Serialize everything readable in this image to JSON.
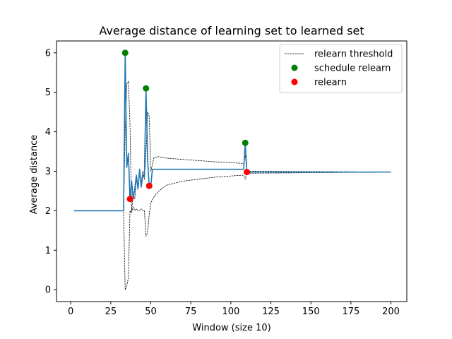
{
  "chart_data": {
    "type": "line",
    "title": "Average distance of learning set to learned set",
    "xlabel": "Window (size 10)",
    "ylabel": "Average distance",
    "xlim": [
      -8.9,
      209.9
    ],
    "ylim": [
      -0.3,
      6.3
    ],
    "xticks": [
      0,
      25,
      50,
      75,
      100,
      125,
      150,
      175,
      200
    ],
    "yticks": [
      0,
      1,
      2,
      3,
      4,
      5,
      6
    ],
    "grid": false,
    "legend_position": "top-right",
    "colors": {
      "distance": "#1f77b4",
      "threshold": "#000000",
      "schedule": "#008000",
      "relearn": "#ff0000"
    },
    "series": [
      {
        "key": "distance",
        "style": "solid",
        "x": [
          2,
          33,
          34,
          35,
          36,
          37,
          38,
          39,
          40,
          41,
          42,
          43,
          44,
          45,
          46,
          47,
          48,
          49,
          50,
          51,
          108,
          109,
          110,
          200
        ],
        "y": [
          2.0,
          2.0,
          6.0,
          3.1,
          3.45,
          2.3,
          2.75,
          2.3,
          2.55,
          2.9,
          2.55,
          3.05,
          2.6,
          2.9,
          2.85,
          5.1,
          3.3,
          2.63,
          2.63,
          3.05,
          3.05,
          3.72,
          2.98,
          2.98
        ]
      },
      {
        "name": "relearn threshold",
        "key": "threshold-upper",
        "style": "dashed",
        "x": [
          2,
          33,
          34,
          35,
          36,
          37,
          38,
          39,
          40,
          41,
          42,
          43,
          44,
          45,
          46,
          47,
          48,
          49,
          50,
          52,
          55,
          60,
          70,
          80,
          90,
          100,
          107,
          108,
          109,
          110,
          200
        ],
        "y": [
          2.0,
          2.0,
          4.0,
          5.2,
          5.28,
          4.2,
          2.0,
          2.4,
          2.3,
          2.8,
          2.6,
          2.9,
          2.7,
          3.0,
          2.8,
          3.5,
          4.5,
          4.4,
          3.0,
          3.35,
          3.37,
          3.33,
          3.3,
          3.27,
          3.24,
          3.22,
          3.2,
          3.18,
          3.4,
          3.0,
          2.98
        ]
      },
      {
        "key": "threshold-lower",
        "style": "dashed",
        "x": [
          2,
          33,
          34,
          35,
          36,
          37,
          38,
          39,
          40,
          41,
          42,
          43,
          44,
          45,
          46,
          47,
          48,
          49,
          50,
          52,
          55,
          60,
          70,
          80,
          90,
          100,
          107,
          108,
          109,
          110,
          200
        ],
        "y": [
          2.0,
          2.0,
          0.0,
          0.1,
          0.3,
          2.0,
          1.95,
          2.1,
          2.0,
          2.05,
          2.0,
          2.0,
          2.05,
          2.0,
          2.0,
          1.35,
          1.45,
          1.9,
          2.2,
          2.35,
          2.5,
          2.65,
          2.75,
          2.8,
          2.85,
          2.88,
          2.9,
          2.9,
          2.8,
          2.95,
          2.98
        ]
      },
      {
        "name": "schedule relearn",
        "key": "schedule",
        "style": "markers",
        "x": [
          34,
          47,
          109
        ],
        "y": [
          6.0,
          5.1,
          3.72
        ]
      },
      {
        "name": "relearn",
        "key": "relearn",
        "style": "markers",
        "x": [
          37,
          49,
          110
        ],
        "y": [
          2.3,
          2.63,
          2.98
        ]
      }
    ],
    "legend": [
      {
        "label": "relearn threshold",
        "key": "threshold",
        "style": "dashed"
      },
      {
        "label": "schedule relearn",
        "key": "schedule",
        "style": "marker"
      },
      {
        "label": "relearn",
        "key": "relearn",
        "style": "marker"
      }
    ]
  }
}
